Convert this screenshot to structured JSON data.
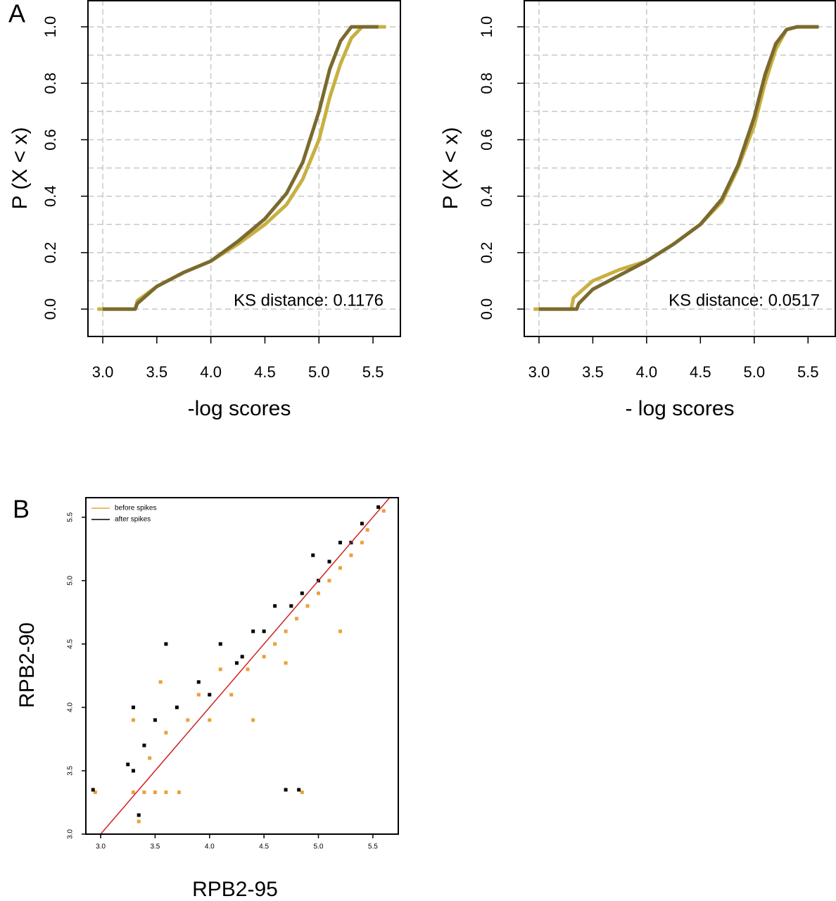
{
  "chart_data": [
    {
      "type": "line",
      "panel_label": "A",
      "xlabel": "-log scores",
      "ylabel": "P (X < x)",
      "annotation": "KS distance: 0.1176",
      "xlim": [
        2.863,
        5.76
      ],
      "ylim": [
        -0.097,
        1.095
      ],
      "xticks": [
        {
          "value": 3,
          "label": "3.0"
        },
        3.5,
        {
          "value": 4,
          "label": "4.0"
        },
        4.5,
        {
          "value": 5,
          "label": "5.0"
        },
        5.5
      ],
      "yticks": [
        {
          "value": 0,
          "label": "0.0"
        },
        0.2,
        0.4,
        0.6,
        0.8,
        {
          "value": 1,
          "label": "1.0"
        }
      ],
      "xgrid": [
        3,
        4,
        5
      ],
      "ygrid": [
        0,
        0.1,
        0.2,
        0.3,
        0.4,
        0.5,
        0.6,
        0.7,
        0.8,
        0.9,
        1
      ],
      "series": [
        {
          "color": "#c8b040",
          "x": [
            2.95,
            3.3,
            3.32,
            3.5,
            3.75,
            4.0,
            4.25,
            4.5,
            4.7,
            4.85,
            5.0,
            5.1,
            5.2,
            5.3,
            5.4,
            5.62
          ],
          "values": [
            0,
            0,
            0.03,
            0.08,
            0.13,
            0.17,
            0.23,
            0.3,
            0.37,
            0.46,
            0.6,
            0.75,
            0.87,
            0.96,
            1,
            1
          ]
        },
        {
          "color": "#7a6a30",
          "x": [
            3.0,
            3.3,
            3.32,
            3.5,
            3.75,
            4.0,
            4.25,
            4.5,
            4.7,
            4.85,
            5.0,
            5.1,
            5.2,
            5.3,
            5.55
          ],
          "values": [
            0,
            0,
            0.02,
            0.08,
            0.13,
            0.17,
            0.24,
            0.32,
            0.41,
            0.52,
            0.7,
            0.85,
            0.95,
            1,
            1
          ]
        }
      ]
    },
    {
      "type": "line",
      "xlabel": "- log scores",
      "ylabel": "P (X < x)",
      "annotation": "KS distance: 0.0517",
      "xlim": [
        2.863,
        5.76
      ],
      "ylim": [
        -0.097,
        1.095
      ],
      "xticks": [
        {
          "value": 3,
          "label": "3.0"
        },
        3.5,
        {
          "value": 4,
          "label": "4.0"
        },
        4.5,
        {
          "value": 5,
          "label": "5.0"
        },
        5.5
      ],
      "yticks": [
        {
          "value": 0,
          "label": "0.0"
        },
        0.2,
        0.4,
        0.6,
        0.8,
        {
          "value": 1,
          "label": "1.0"
        }
      ],
      "xgrid": [
        3,
        4,
        5
      ],
      "ygrid": [
        0,
        0.1,
        0.2,
        0.3,
        0.4,
        0.5,
        0.6,
        0.7,
        0.8,
        0.9,
        1
      ],
      "series": [
        {
          "color": "#c8b040",
          "x": [
            2.95,
            3.3,
            3.32,
            3.5,
            3.75,
            4.0,
            4.25,
            4.5,
            4.7,
            4.85,
            5.0,
            5.1,
            5.2,
            5.3,
            5.4,
            5.6
          ],
          "values": [
            0,
            0,
            0.04,
            0.1,
            0.14,
            0.17,
            0.23,
            0.3,
            0.38,
            0.5,
            0.65,
            0.8,
            0.92,
            0.99,
            1,
            1
          ]
        },
        {
          "color": "#7a6a30",
          "x": [
            3.0,
            3.35,
            3.37,
            3.5,
            3.75,
            4.0,
            4.25,
            4.5,
            4.7,
            4.85,
            5.0,
            5.1,
            5.2,
            5.3,
            5.4,
            5.6
          ],
          "values": [
            0,
            0,
            0.02,
            0.07,
            0.12,
            0.17,
            0.23,
            0.3,
            0.39,
            0.51,
            0.68,
            0.83,
            0.94,
            0.99,
            1,
            1
          ]
        }
      ]
    },
    {
      "type": "scatter",
      "panel_label": "B",
      "xlabel": "RPB2-95",
      "ylabel": "RPB2-90",
      "xlim": [
        2.864,
        5.74
      ],
      "ylim": [
        3.0,
        5.66
      ],
      "xticks": [
        {
          "value": 3,
          "label": "3.0"
        },
        3.5,
        {
          "value": 4,
          "label": "4.0"
        },
        4.5,
        {
          "value": 5,
          "label": "5.0"
        },
        5.5
      ],
      "yticks": [
        {
          "value": 3,
          "label": "3.0"
        },
        3.5,
        {
          "value": 4,
          "label": "4.0"
        },
        4.5,
        {
          "value": 5,
          "label": "5.0"
        },
        5.5
      ],
      "reference_line": {
        "color": "#cc2222",
        "x": [
          3.0,
          5.66
        ],
        "y": [
          3.0,
          5.66
        ]
      },
      "series": [
        {
          "name": "before spikes",
          "color": "#e8a23a",
          "x": [
            3.3,
            3.4,
            3.5,
            3.6,
            3.72,
            3.3,
            3.45,
            3.6,
            3.8,
            3.9,
            4.0,
            4.1,
            4.2,
            4.35,
            4.5,
            4.6,
            4.7,
            4.8,
            4.9,
            5.0,
            5.1,
            5.2,
            5.3,
            5.4,
            5.45,
            5.6,
            2.95,
            4.85,
            3.35,
            4.4,
            4.7,
            5.2,
            3.55
          ],
          "values": [
            3.33,
            3.33,
            3.33,
            3.33,
            3.33,
            3.9,
            3.6,
            3.8,
            3.9,
            4.1,
            3.9,
            4.3,
            4.1,
            4.3,
            4.4,
            4.5,
            4.6,
            4.7,
            4.8,
            4.9,
            5.0,
            5.1,
            5.2,
            5.3,
            5.4,
            5.55,
            3.33,
            3.33,
            3.1,
            3.9,
            4.35,
            4.6,
            4.2
          ]
        },
        {
          "name": "after spikes",
          "color": "#000000",
          "x": [
            3.3,
            3.3,
            3.4,
            3.5,
            3.7,
            3.9,
            4.0,
            4.1,
            4.3,
            4.4,
            4.5,
            4.6,
            4.75,
            4.85,
            5.0,
            5.1,
            5.2,
            5.3,
            5.4,
            5.55,
            4.7,
            4.82,
            2.93,
            3.25,
            4.25,
            3.6,
            4.95,
            3.35
          ],
          "values": [
            4.0,
            3.5,
            3.7,
            3.9,
            4.0,
            4.2,
            4.1,
            4.5,
            4.4,
            4.6,
            4.6,
            4.8,
            4.8,
            4.9,
            5.0,
            5.15,
            5.3,
            5.3,
            5.45,
            5.58,
            3.35,
            3.35,
            3.35,
            3.55,
            4.35,
            4.5,
            5.2,
            3.15
          ]
        }
      ]
    }
  ]
}
